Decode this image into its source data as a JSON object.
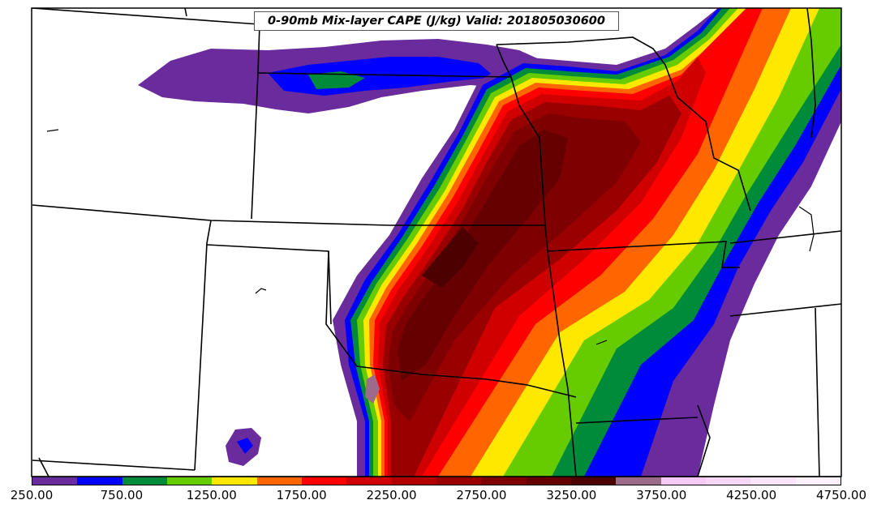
{
  "title": "0-90mb Mix-layer CAPE (J/kg) Valid: 201805030600",
  "colorbar": {
    "levels": [
      250,
      500,
      750,
      1000,
      1250,
      1500,
      1750,
      2000,
      2250,
      2500,
      2750,
      3000,
      3250,
      3500,
      3750,
      4000,
      4250,
      4500,
      4750
    ],
    "colors": [
      "#6a2b9d",
      "#0000ff",
      "#008b3a",
      "#66cc00",
      "#ffe800",
      "#ff6600",
      "#ff0000",
      "#d10000",
      "#b00000",
      "#990000",
      "#7f0000",
      "#660000",
      "#4c0000",
      "#9c6b8a",
      "#f5c8f5",
      "#f8d6f8",
      "#fae4fa",
      "#fdf0fd"
    ],
    "tick_labels": [
      "250.00",
      "750.00",
      "1250.00",
      "1750.00",
      "2250.00",
      "2750.00",
      "3250.00",
      "3750.00",
      "4250.00",
      "4750.00"
    ]
  }
}
